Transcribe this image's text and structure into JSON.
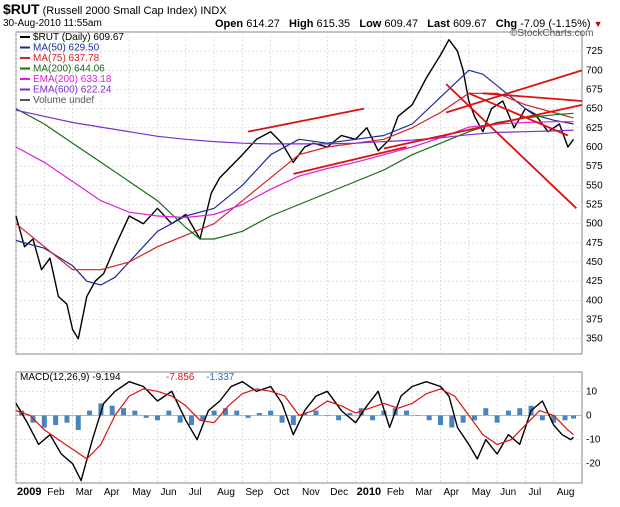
{
  "header": {
    "symbol": "$RUT",
    "name": "(Russell 2000 Small Cap Index)",
    "exchange": "INDX",
    "datetime": "30-Aug-2010 11:55am",
    "open_label": "Open",
    "open": "614.27",
    "high_label": "High",
    "high": "615.35",
    "low_label": "Low",
    "low": "609.47",
    "last_label": "Last",
    "last": "609.67",
    "chg_label": "Chg",
    "chg": "-7.09 (-1.15%)",
    "chg_arrow": "▼",
    "watermark": "©StockCharts.com"
  },
  "colors": {
    "price": "#000000",
    "ma50": "#1f2a9c",
    "ma75": "#d42222",
    "ma200": "#1a6b1a",
    "ema200": "#e01ee0",
    "ema600": "#7a2fd0",
    "trend": "#dd1111",
    "macd_line": "#000000",
    "signal_line": "#dd1111",
    "hist": "#2a6fb0",
    "grid": "#cccccc"
  },
  "chart_data": [
    {
      "type": "line",
      "title": "$RUT (Russell 2000 Small Cap Index) INDX",
      "ylim": [
        330,
        750
      ],
      "yticks": [
        350,
        375,
        400,
        425,
        450,
        475,
        500,
        525,
        550,
        575,
        600,
        625,
        650,
        675,
        700,
        725
      ],
      "x_labels": [
        "2009",
        "Feb",
        "Mar",
        "Apr",
        "May",
        "Jun",
        "Jul",
        "Aug",
        "Sep",
        "Oct",
        "Nov",
        "Dec",
        "2010",
        "Feb",
        "Mar",
        "Apr",
        "May",
        "Jun",
        "Jul",
        "Aug"
      ],
      "x_label_t": [
        0,
        1,
        2,
        3,
        4,
        5,
        6,
        7,
        8,
        9,
        10,
        11,
        12,
        13,
        14,
        15,
        16,
        17,
        18,
        19
      ],
      "x_range": [
        0,
        20
      ],
      "legend": [
        {
          "key": "price",
          "label": "$RUT (Daily) 609.67"
        },
        {
          "key": "ma50",
          "label": "MA(50) 629.50"
        },
        {
          "key": "ma75",
          "label": "MA(75) 637.78"
        },
        {
          "key": "ma200",
          "label": "MA(200) 644.06"
        },
        {
          "key": "ema200",
          "label": "EMA(200) 633.18"
        },
        {
          "key": "ema600",
          "label": "EMA(600) 622.24"
        },
        {
          "key": "volume",
          "label": "Volume undef"
        }
      ],
      "series": [
        {
          "name": "$RUT (Daily)",
          "key": "price",
          "t": [
            0,
            0.3,
            0.6,
            0.9,
            1.2,
            1.5,
            1.8,
            2.0,
            2.2,
            2.5,
            2.8,
            3.1,
            3.5,
            4.0,
            4.5,
            5.0,
            5.5,
            6.0,
            6.5,
            6.9,
            7.2,
            7.6,
            8.0,
            8.5,
            9.0,
            9.4,
            9.8,
            10.2,
            10.5,
            11.0,
            11.5,
            12.0,
            12.4,
            12.8,
            13.2,
            13.5,
            14.0,
            14.5,
            15.0,
            15.3,
            15.6,
            15.8,
            16.0,
            16.2,
            16.5,
            16.8,
            17.2,
            17.6,
            18.0,
            18.4,
            18.8,
            19.2,
            19.5,
            19.7
          ],
          "values": [
            510,
            470,
            480,
            440,
            455,
            405,
            395,
            362,
            350,
            405,
            425,
            435,
            470,
            510,
            500,
            520,
            500,
            512,
            480,
            540,
            560,
            575,
            590,
            610,
            620,
            605,
            580,
            600,
            605,
            600,
            615,
            610,
            625,
            595,
            610,
            640,
            655,
            690,
            720,
            740,
            725,
            700,
            660,
            640,
            620,
            650,
            660,
            625,
            650,
            640,
            620,
            630,
            600,
            610
          ]
        },
        {
          "name": "MA(50)",
          "key": "ma50",
          "t": [
            0,
            1,
            2,
            2.5,
            3,
            3.5,
            4,
            5,
            6,
            7,
            8,
            9,
            10,
            11,
            12,
            13,
            14,
            15,
            16,
            16.5,
            17,
            17.5,
            18,
            18.5,
            19,
            19.7
          ],
          "values": [
            478,
            468,
            445,
            425,
            420,
            430,
            450,
            490,
            510,
            520,
            550,
            590,
            610,
            605,
            610,
            615,
            630,
            665,
            700,
            695,
            680,
            665,
            650,
            640,
            635,
            630
          ]
        },
        {
          "name": "MA(75)",
          "key": "ma75",
          "t": [
            0,
            1,
            2,
            3,
            4,
            5,
            6,
            7,
            8,
            9,
            10,
            11,
            12,
            13,
            14,
            15,
            16,
            17,
            18,
            19,
            19.7
          ],
          "values": [
            500,
            470,
            440,
            440,
            450,
            470,
            485,
            500,
            530,
            560,
            590,
            600,
            605,
            610,
            625,
            645,
            670,
            670,
            655,
            645,
            638
          ]
        },
        {
          "name": "MA(200)",
          "key": "ma200",
          "t": [
            0,
            1,
            2,
            3,
            4,
            5,
            6,
            6.5,
            7,
            8,
            9,
            10,
            11,
            12,
            13,
            14,
            15,
            16,
            17,
            18,
            19,
            19.7
          ],
          "values": [
            650,
            630,
            605,
            580,
            555,
            530,
            495,
            480,
            480,
            490,
            510,
            525,
            540,
            555,
            570,
            590,
            605,
            620,
            632,
            638,
            642,
            644
          ]
        },
        {
          "name": "EMA(200)",
          "key": "ema200",
          "t": [
            0,
            1,
            2,
            3,
            4,
            5,
            6,
            7,
            8,
            9,
            10,
            11,
            12,
            13,
            14,
            15,
            16,
            17,
            18,
            19,
            19.7
          ],
          "values": [
            600,
            580,
            555,
            530,
            515,
            510,
            508,
            512,
            525,
            545,
            562,
            572,
            580,
            590,
            600,
            612,
            626,
            630,
            632,
            633,
            633
          ]
        },
        {
          "name": "EMA(600)",
          "key": "ema600",
          "t": [
            0,
            1,
            2,
            3,
            4,
            5,
            6,
            7,
            8,
            9,
            10,
            11,
            12,
            13,
            14,
            15,
            16,
            17,
            18,
            19,
            19.7
          ],
          "values": [
            648,
            640,
            632,
            626,
            620,
            614,
            610,
            607,
            605,
            604,
            604,
            604,
            605,
            607,
            609,
            612,
            616,
            619,
            620,
            621,
            622
          ]
        }
      ],
      "trendlines": [
        {
          "name": "upper-channel",
          "t": [
            8.2,
            12.3
          ],
          "values": [
            620,
            650
          ]
        },
        {
          "name": "lower-channel",
          "t": [
            9.8,
            13.8
          ],
          "values": [
            565,
            600
          ]
        },
        {
          "name": "long-upper",
          "t": [
            15.2,
            20
          ],
          "values": [
            645,
            700
          ]
        },
        {
          "name": "long-lower",
          "t": [
            13.0,
            20
          ],
          "values": [
            598,
            655
          ]
        },
        {
          "name": "top-resistance",
          "t": [
            16.5,
            20
          ],
          "values": [
            670,
            660
          ]
        },
        {
          "name": "steep-decline",
          "t": [
            15.2,
            19.8
          ],
          "values": [
            682,
            520
          ]
        },
        {
          "name": "decline-channel",
          "t": [
            16.0,
            19.5
          ],
          "values": [
            670,
            615
          ]
        }
      ]
    },
    {
      "type": "line",
      "title": "MACD(12,26,9)",
      "legend": [
        {
          "key": "macd_line",
          "label": "MACD(12,26,9) -9.194"
        },
        {
          "key": "signal_line",
          "label": "-7.856"
        },
        {
          "key": "hist",
          "label": "-1.337"
        }
      ],
      "ylim": [
        -28,
        18
      ],
      "yticks": [
        -20,
        -10,
        0,
        10
      ],
      "x_labels": [
        "2009",
        "Feb",
        "Mar",
        "Apr",
        "May",
        "Jun",
        "Jul",
        "Aug",
        "Sep",
        "Oct",
        "Nov",
        "Dec",
        "2010",
        "Feb",
        "Mar",
        "Apr",
        "May",
        "Jun",
        "Jul",
        "Aug"
      ],
      "x_label_t": [
        0,
        1,
        2,
        3,
        4,
        5,
        6,
        7,
        8,
        9,
        10,
        11,
        12,
        13,
        14,
        15,
        16,
        17,
        18,
        19
      ],
      "x_range": [
        0,
        20
      ],
      "series": [
        {
          "name": "MACD",
          "key": "macd_line",
          "t": [
            0,
            0.4,
            0.8,
            1.2,
            1.6,
            2.0,
            2.3,
            2.7,
            3.1,
            3.5,
            4.0,
            4.5,
            5.0,
            5.5,
            6.0,
            6.4,
            6.8,
            7.2,
            7.6,
            8.0,
            8.5,
            9.0,
            9.4,
            9.8,
            10.2,
            10.6,
            11.0,
            11.5,
            12.0,
            12.4,
            12.8,
            13.2,
            13.6,
            14.0,
            14.5,
            15.0,
            15.3,
            15.6,
            16.0,
            16.3,
            16.6,
            17.0,
            17.4,
            17.8,
            18.2,
            18.6,
            19.0,
            19.3,
            19.6,
            19.7
          ],
          "values": [
            5,
            -3,
            -12,
            -8,
            -16,
            -20,
            -27,
            -10,
            5,
            10,
            14,
            12,
            6,
            10,
            -2,
            -10,
            2,
            6,
            12,
            14,
            10,
            12,
            5,
            -8,
            2,
            8,
            10,
            2,
            -3,
            4,
            10,
            -5,
            8,
            12,
            14,
            12,
            8,
            -5,
            -12,
            -18,
            -10,
            -16,
            -8,
            -12,
            2,
            6,
            -4,
            -8,
            -10,
            -9
          ]
        },
        {
          "name": "Signal",
          "key": "signal_line",
          "t": [
            0,
            0.5,
            1.0,
            1.5,
            2.0,
            2.5,
            3.0,
            3.5,
            4.0,
            4.5,
            5.0,
            5.5,
            6.0,
            6.5,
            7.0,
            7.5,
            8.0,
            8.5,
            9.0,
            9.5,
            10.0,
            10.5,
            11.0,
            11.5,
            12.0,
            12.5,
            13.0,
            13.5,
            14.0,
            14.5,
            15.0,
            15.5,
            16.0,
            16.5,
            17.0,
            17.5,
            18.0,
            18.5,
            19.0,
            19.5,
            19.7
          ],
          "values": [
            2,
            0,
            -6,
            -10,
            -14,
            -18,
            -12,
            0,
            8,
            11,
            10,
            8,
            4,
            -2,
            -3,
            4,
            9,
            11,
            10,
            8,
            0,
            2,
            6,
            4,
            1,
            3,
            5,
            3,
            5,
            9,
            11,
            8,
            0,
            -8,
            -12,
            -10,
            -4,
            2,
            0,
            -6,
            -8
          ]
        },
        {
          "name": "Histogram",
          "key": "hist",
          "t": [
            0.2,
            0.6,
            1.0,
            1.4,
            1.8,
            2.2,
            2.6,
            3.0,
            3.4,
            3.8,
            4.2,
            4.6,
            5.0,
            5.4,
            5.8,
            6.2,
            6.6,
            7.0,
            7.4,
            7.8,
            8.2,
            8.6,
            9.0,
            9.4,
            9.8,
            10.2,
            10.6,
            11.0,
            11.4,
            11.8,
            12.2,
            12.6,
            13.0,
            13.4,
            13.8,
            14.2,
            14.6,
            15.0,
            15.4,
            15.8,
            16.2,
            16.6,
            17.0,
            17.4,
            17.8,
            18.2,
            18.6,
            19.0,
            19.4,
            19.7
          ],
          "values": [
            2,
            -3,
            -5,
            -4,
            -3,
            -6,
            2,
            5,
            4,
            3,
            2,
            -1,
            -2,
            2,
            -3,
            -4,
            -2,
            2,
            3,
            2,
            -1,
            1,
            2,
            -3,
            -4,
            1,
            2,
            0,
            -2,
            1,
            3,
            -2,
            2,
            3,
            2,
            0,
            -2,
            -4,
            -5,
            -3,
            -2,
            3,
            -3,
            2,
            3,
            4,
            -2,
            -3,
            -2,
            -1.3
          ]
        }
      ]
    }
  ]
}
